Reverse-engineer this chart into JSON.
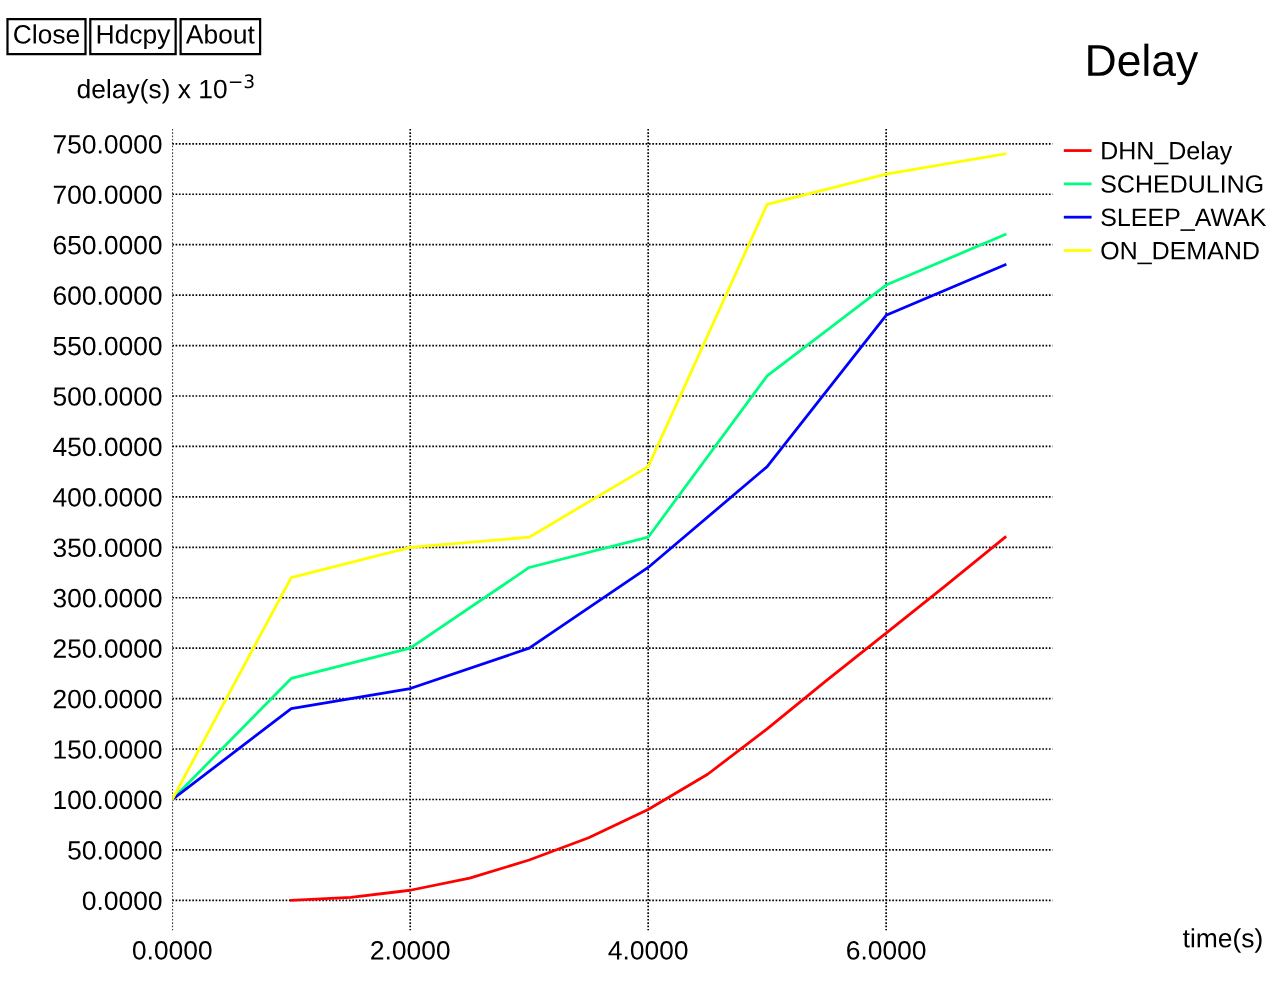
{
  "chart_data": {
    "type": "line",
    "title": "Delay",
    "ylabel": "delay(s) x 10$^{−3}$",
    "xlabel": "time(s)",
    "annotations": [
      "Close",
      "Hdcpy",
      "About"
    ],
    "xlim": [
      0,
      7.4
    ],
    "ylim": [
      -30,
      765
    ],
    "xticks": [
      {
        "value": 0,
        "label": "0.0000"
      },
      {
        "value": 2,
        "label": "2.0000"
      },
      {
        "value": 4,
        "label": "4.0000"
      },
      {
        "value": 6,
        "label": "6.0000"
      }
    ],
    "yticks": [
      {
        "value": 0,
        "label": "0.0000"
      },
      {
        "value": 50,
        "label": "50.0000"
      },
      {
        "value": 100,
        "label": "100.0000"
      },
      {
        "value": 150,
        "label": "150.0000"
      },
      {
        "value": 200,
        "label": "200.0000"
      },
      {
        "value": 250,
        "label": "250.0000"
      },
      {
        "value": 300,
        "label": "300.0000"
      },
      {
        "value": 350,
        "label": "350.0000"
      },
      {
        "value": 400,
        "label": "400.0000"
      },
      {
        "value": 450,
        "label": "450.0000"
      },
      {
        "value": 500,
        "label": "500.0000"
      },
      {
        "value": 550,
        "label": "550.0000"
      },
      {
        "value": 600,
        "label": "600.0000"
      },
      {
        "value": 650,
        "label": "650.0000"
      },
      {
        "value": 700,
        "label": "700.0000"
      },
      {
        "value": 750,
        "label": "750.0000"
      }
    ],
    "grid": true,
    "legend": "right",
    "marker": "none",
    "line_style": "solid",
    "series": [
      {
        "name": "DHN_Delay",
        "color": "#ff0000",
        "x": [
          1,
          1.5,
          2,
          2.5,
          3,
          3.5,
          4,
          4.5,
          5,
          5.5,
          6,
          6.5,
          7
        ],
        "values": [
          0,
          3,
          10,
          22,
          40,
          62,
          90,
          125,
          170,
          218,
          265,
          312,
          360
        ]
      },
      {
        "name": "SCHEDULING",
        "color": "#00ff7f",
        "x": [
          0,
          1,
          2,
          3,
          4,
          5,
          6,
          7
        ],
        "values": [
          100,
          220,
          250,
          330,
          360,
          520,
          610,
          660
        ]
      },
      {
        "name": "SLEEP_AWAK",
        "color": "#0000ff",
        "x": [
          0,
          1,
          2,
          3,
          4,
          5,
          6,
          7
        ],
        "values": [
          100,
          190,
          210,
          250,
          330,
          430,
          580,
          630
        ]
      },
      {
        "name": "ON_DEMAND",
        "color": "#ffff00",
        "x": [
          0,
          1,
          2,
          3,
          4,
          5,
          6,
          7
        ],
        "values": [
          100,
          320,
          350,
          360,
          430,
          690,
          720,
          740
        ]
      }
    ]
  }
}
